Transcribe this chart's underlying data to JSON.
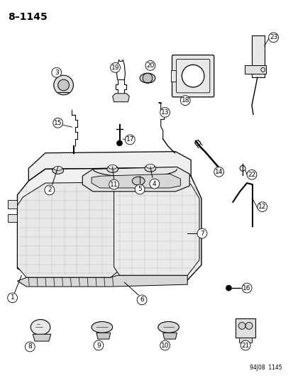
{
  "title": "8–1145",
  "footer": "94J08  1145",
  "bg_color": "#ffffff",
  "fg_color": "#000000",
  "figsize": [
    4.14,
    5.33
  ],
  "dpi": 100
}
